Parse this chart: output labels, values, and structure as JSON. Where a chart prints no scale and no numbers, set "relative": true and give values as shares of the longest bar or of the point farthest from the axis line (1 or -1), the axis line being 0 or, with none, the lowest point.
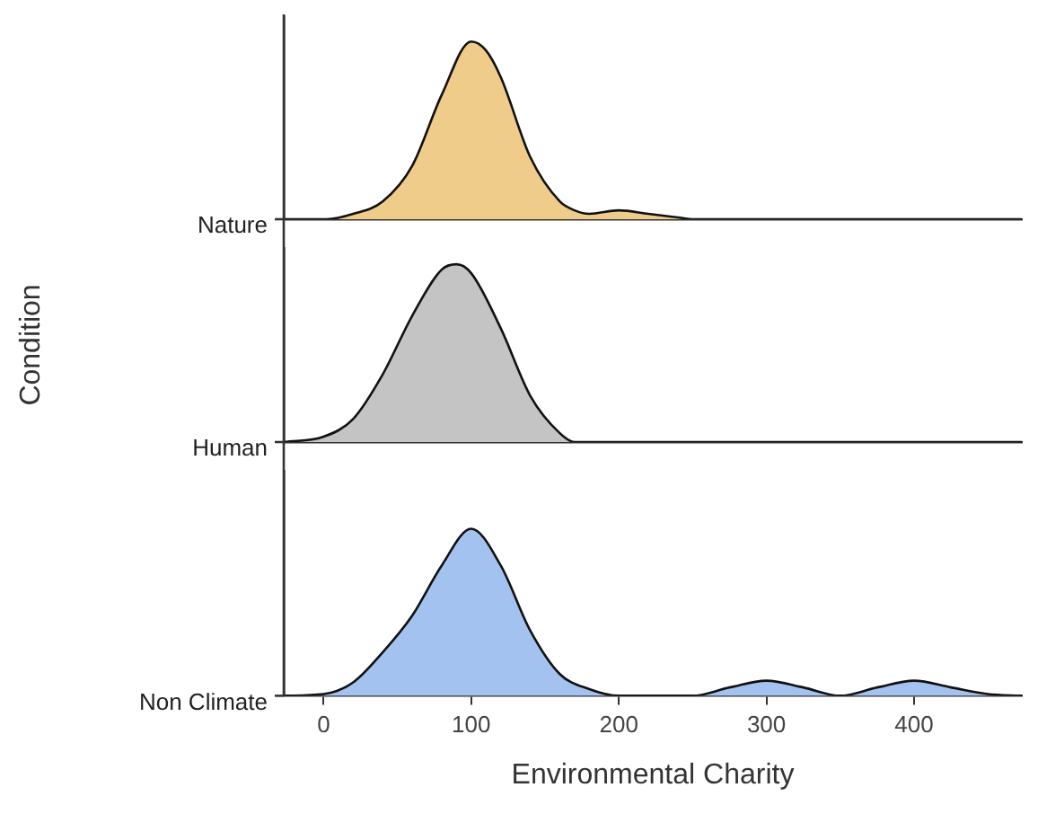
{
  "chart_data": [
    {
      "type": "area",
      "relative": true,
      "xlim": [
        -27,
        473
      ],
      "tick_labels": false,
      "grid": false,
      "legend": false,
      "series": [
        {
          "name": "Nature",
          "color": "#f0cc8a",
          "x": [
            -27,
            2,
            20,
            40,
            60,
            80,
            100,
            110,
            120,
            140,
            160,
            170,
            180,
            200,
            220,
            240,
            250,
            473
          ],
          "values": [
            0,
            0,
            0.03,
            0.1,
            0.3,
            0.7,
            1.0,
            0.95,
            0.8,
            0.35,
            0.1,
            0.05,
            0.03,
            0.05,
            0.03,
            0.01,
            0,
            0
          ]
        }
      ]
    },
    {
      "type": "area",
      "relative": true,
      "ylabel": "Condition",
      "xlim": [
        -27,
        473
      ],
      "tick_labels": false,
      "grid": false,
      "legend": false,
      "series": [
        {
          "name": "Human",
          "color": "#c4c4c4",
          "x": [
            -27,
            0,
            20,
            40,
            60,
            80,
            90,
            100,
            120,
            140,
            160,
            170,
            473
          ],
          "values": [
            0,
            0.03,
            0.13,
            0.38,
            0.71,
            0.97,
            1.0,
            0.95,
            0.64,
            0.26,
            0.05,
            0,
            0
          ]
        }
      ]
    },
    {
      "type": "area",
      "relative": true,
      "xlabel": "Environmental Charity",
      "xlim": [
        -27,
        473
      ],
      "xticks": [
        0,
        100,
        200,
        300,
        400
      ],
      "tick_labels": "x",
      "grid": false,
      "legend": false,
      "series": [
        {
          "name": "Non Climate",
          "color": "#a4c2f0",
          "x": [
            -27,
            0,
            20,
            40,
            60,
            80,
            100,
            120,
            140,
            160,
            180,
            200,
            250,
            275,
            300,
            325,
            350,
            375,
            400,
            425,
            450,
            473
          ],
          "values": [
            0,
            0.01,
            0.08,
            0.26,
            0.48,
            0.78,
            1.0,
            0.78,
            0.39,
            0.13,
            0.04,
            0,
            0,
            0.05,
            0.09,
            0.05,
            0,
            0.05,
            0.09,
            0.05,
            0.01,
            0
          ]
        }
      ]
    }
  ]
}
